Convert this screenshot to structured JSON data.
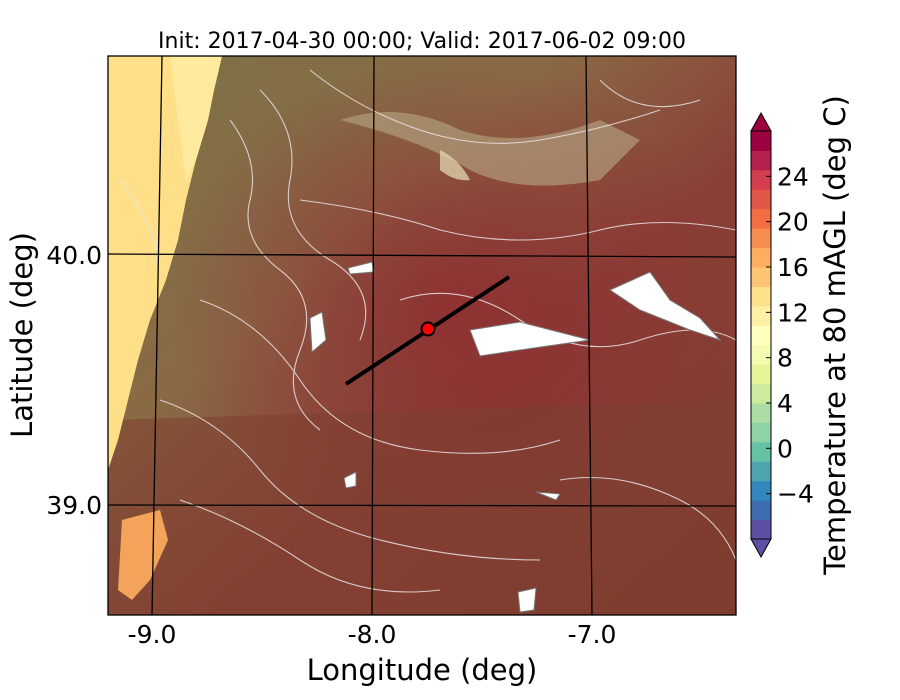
{
  "title": "Init: 2017-04-30 00:00; Valid: 2017-06-02 09:00",
  "xlabel": "Longitude (deg)",
  "ylabel": "Latitude (deg)",
  "colorbar": {
    "label": "Temperature at 80 mAGL (deg C)",
    "ticks": [
      "−4",
      "0",
      "4",
      "8",
      "12",
      "16",
      "20",
      "24"
    ],
    "tick_values": [
      -4,
      0,
      4,
      8,
      12,
      16,
      20,
      24
    ],
    "range": [
      -8,
      28
    ],
    "colors": [
      "#5e4fa2",
      "#3f6db1",
      "#3288bd",
      "#4ea5b0",
      "#66c2a5",
      "#8fd3a4",
      "#abdda4",
      "#cdeb9d",
      "#e6f598",
      "#f6fbb3",
      "#ffffbf",
      "#fff0a6",
      "#fee08b",
      "#fdc473",
      "#fdae61",
      "#f88d52",
      "#f46d43",
      "#e25748",
      "#d53e4f",
      "#b5204d",
      "#9e0142"
    ]
  },
  "map": {
    "xticks": [
      "-9.0",
      "-8.0",
      "-7.0"
    ],
    "yticks": [
      "40.0",
      "39.0"
    ],
    "ocean_color": "#ffe089",
    "land_color_cool": "#8a7a4c",
    "land_color_warm": "#8e3a34",
    "site_marker_color": "#ff0000",
    "transect_color": "#000000"
  }
}
